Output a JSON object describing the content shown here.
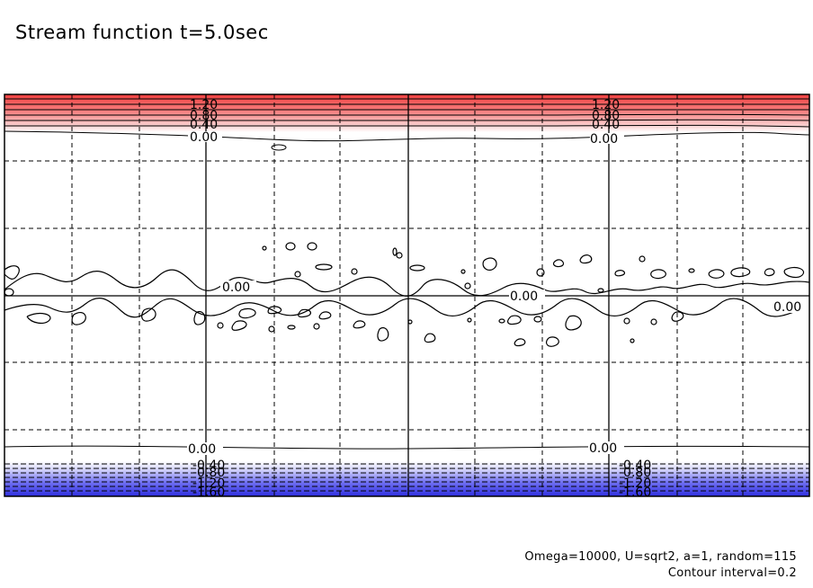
{
  "title": "Stream function t=5.0sec",
  "footer": {
    "params": "Omega=10000, U=sqrt2, a=1, random=115",
    "contour_interval": "Contour interval=0.2"
  },
  "contour_labels": {
    "top_left": [
      "1.20",
      "0.80",
      "0.40",
      "0.00"
    ],
    "top_right": [
      "1.20",
      "0.80",
      "0.40",
      "0.00"
    ],
    "mid": [
      "0.00",
      "0.00",
      "0.00"
    ],
    "bottom_left": [
      "0.00",
      "-0.40",
      "-0.80",
      "-1.20",
      "-1.60"
    ],
    "bottom_right": [
      "0.00",
      "-0.40",
      "-0.80",
      "-1.20",
      "-1.60"
    ]
  },
  "colors": {
    "positive": "#f04a4a",
    "negative": "#3c3ce8",
    "frame": "#000000"
  }
}
